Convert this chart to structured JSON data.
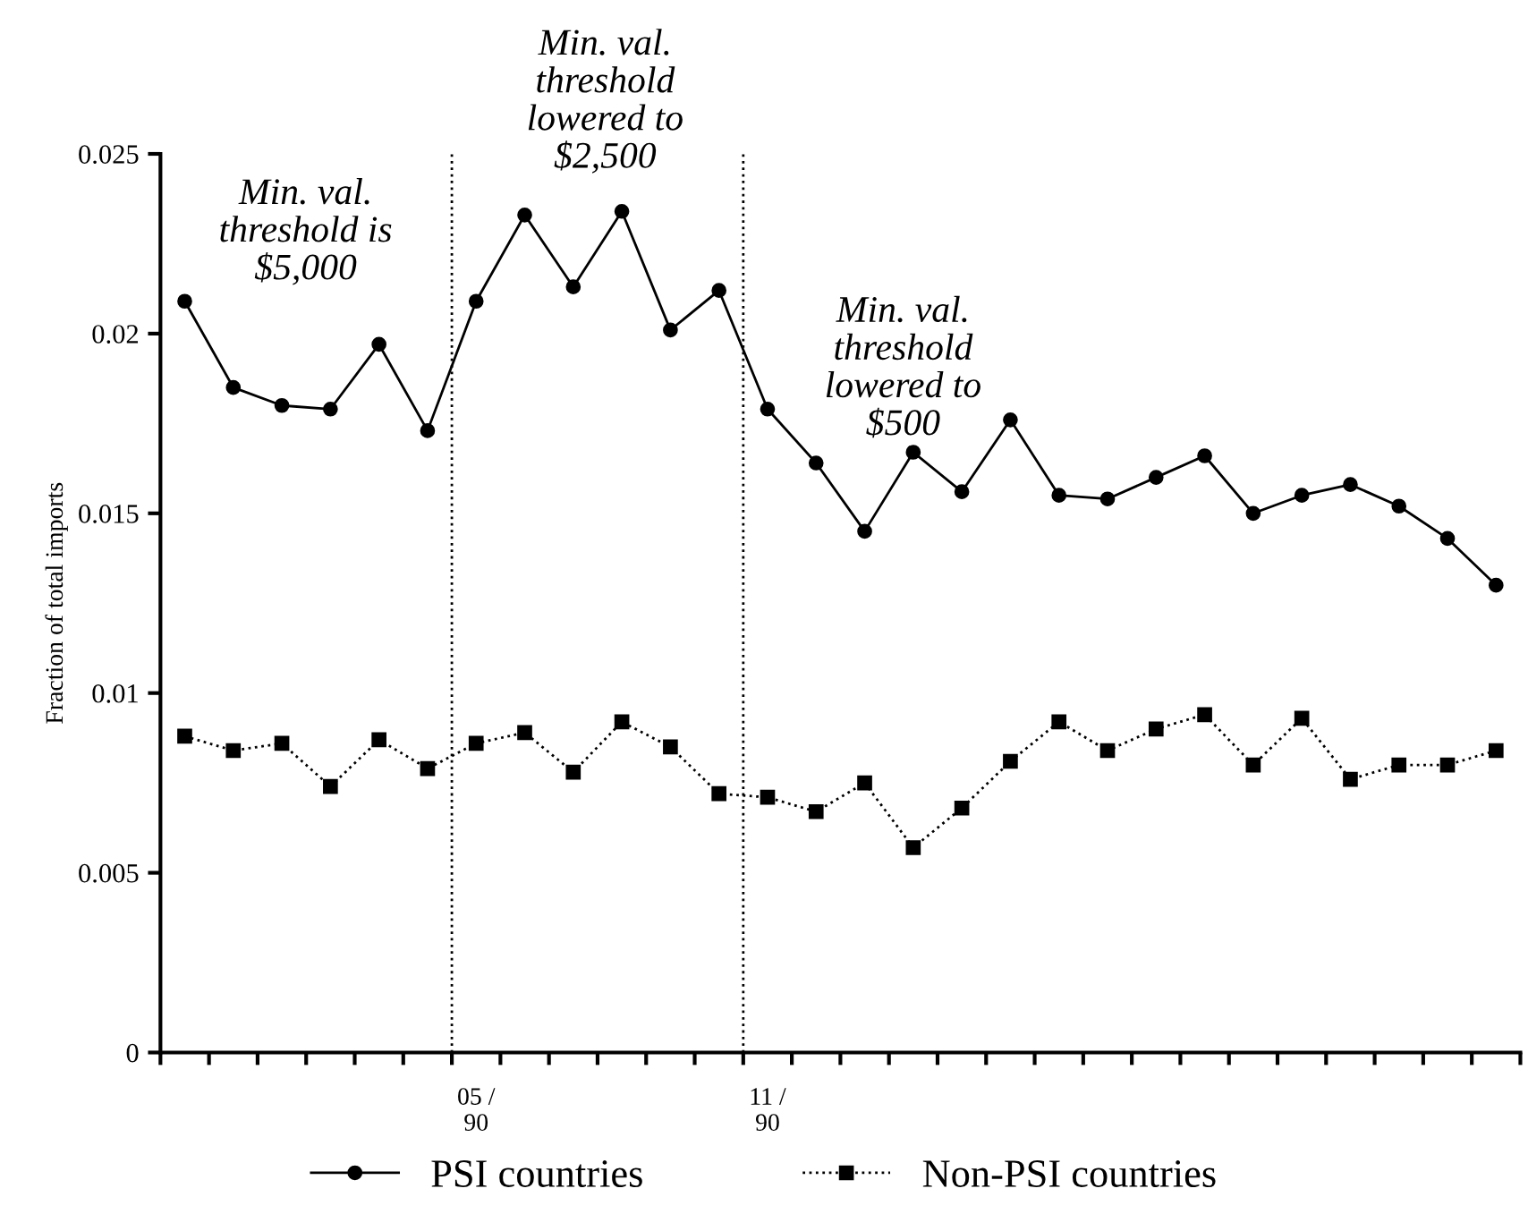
{
  "chart_data": {
    "type": "line",
    "ylabel": "Fraction of total imports",
    "categories": [
      null,
      null,
      null,
      null,
      null,
      null,
      "05 /\n90",
      null,
      null,
      null,
      null,
      null,
      "11 /\n90",
      null,
      null,
      null,
      null,
      null,
      null,
      null,
      null,
      null,
      null,
      null,
      null,
      null,
      null,
      null
    ],
    "series": [
      {
        "name": "PSI countries",
        "color": "#000000",
        "marker": "circle",
        "line_style": "solid",
        "values": [
          0.0209,
          0.0185,
          0.018,
          0.0179,
          0.0197,
          0.0173,
          0.0209,
          0.0233,
          0.0213,
          0.0234,
          0.0201,
          0.0212,
          0.0179,
          0.0164,
          0.0145,
          0.0167,
          0.0156,
          0.0176,
          0.0155,
          0.0154,
          0.016,
          0.0166,
          0.015,
          0.0155,
          0.0158,
          0.0152,
          0.0143,
          0.013
        ]
      },
      {
        "name": "Non-PSI countries",
        "color": "#000000",
        "marker": "square",
        "line_style": "dotted",
        "values": [
          0.0088,
          0.0084,
          0.0086,
          0.0074,
          0.0087,
          0.0079,
          0.0086,
          0.0089,
          0.0078,
          0.0092,
          0.0085,
          0.0072,
          0.0071,
          0.0067,
          0.0075,
          0.0057,
          0.0068,
          0.0081,
          0.0092,
          0.0084,
          0.009,
          0.0094,
          0.008,
          0.0093,
          0.0076,
          0.008,
          0.008,
          0.0084
        ]
      }
    ],
    "ylim": [
      0,
      0.025
    ],
    "yticks": [
      0,
      0.005,
      0.01,
      0.015,
      0.02,
      0.025
    ],
    "annotations": [
      "Min. val.\nthreshold is\n$5,000",
      "Min. val.\nthreshold\nlowered to\n$2,500",
      "Min. val.\nthreshold\nlowered to\n$500"
    ],
    "grid": false,
    "legend": "bottom"
  }
}
